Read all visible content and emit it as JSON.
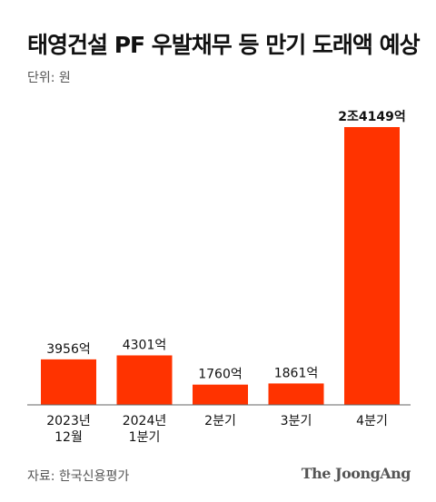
{
  "title": "태영건설 PF 우발채무 등 만기 도래액 예상",
  "unit_label": "단위: 원",
  "source": "자료: 한국신용평가",
  "brand": "The JoongAng",
  "colors": {
    "bar": "#ff3300",
    "axis": "#666666",
    "text": "#111111"
  },
  "chart_data": {
    "type": "bar",
    "title": "태영건설 PF 우발채무 등 만기 도래액 예상",
    "xlabel": "",
    "ylabel": "",
    "unit": "억",
    "ylim": [
      0,
      24149
    ],
    "grid": false,
    "categories": [
      [
        "2023년",
        "12월"
      ],
      [
        "2024년",
        "1분기"
      ],
      [
        "2분기"
      ],
      [
        "3분기"
      ],
      [
        "4분기"
      ]
    ],
    "values": [
      3956,
      4301,
      1760,
      1861,
      24149
    ],
    "data_labels": [
      "3956억",
      "4301억",
      "1760억",
      "1861억",
      "2조4149억"
    ]
  }
}
